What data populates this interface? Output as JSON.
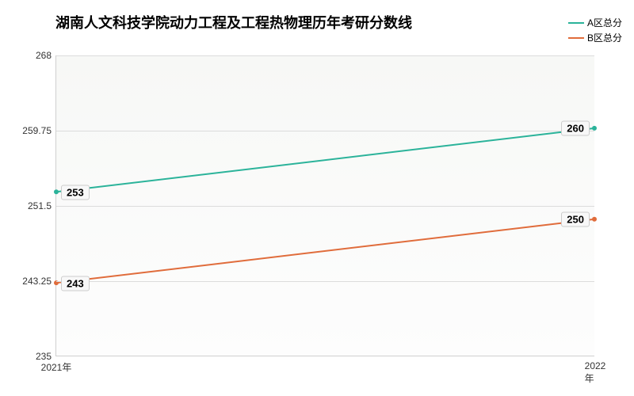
{
  "chart": {
    "type": "line",
    "title": "湖南人文科技学院动力工程及工程热物理历年考研分数线",
    "title_fontsize": 18,
    "background_color": "#ffffff",
    "plot_background": "#f7f8f6",
    "grid_color": "#dcdcdc",
    "axis_color": "#d0d0d0",
    "categories": [
      "2021年",
      "2022年"
    ],
    "ylim": [
      235,
      268
    ],
    "ytick_step": 8.25,
    "y_ticks": [
      235,
      243.25,
      251.5,
      259.75,
      268
    ],
    "series": [
      {
        "name": "A区总分",
        "color": "#2bb39a",
        "values": [
          253,
          260
        ],
        "line_width": 2
      },
      {
        "name": "B区总分",
        "color": "#e06c3b",
        "values": [
          243,
          250
        ],
        "line_width": 2
      }
    ],
    "label_fontsize": 12,
    "data_label_fontsize": 13
  }
}
